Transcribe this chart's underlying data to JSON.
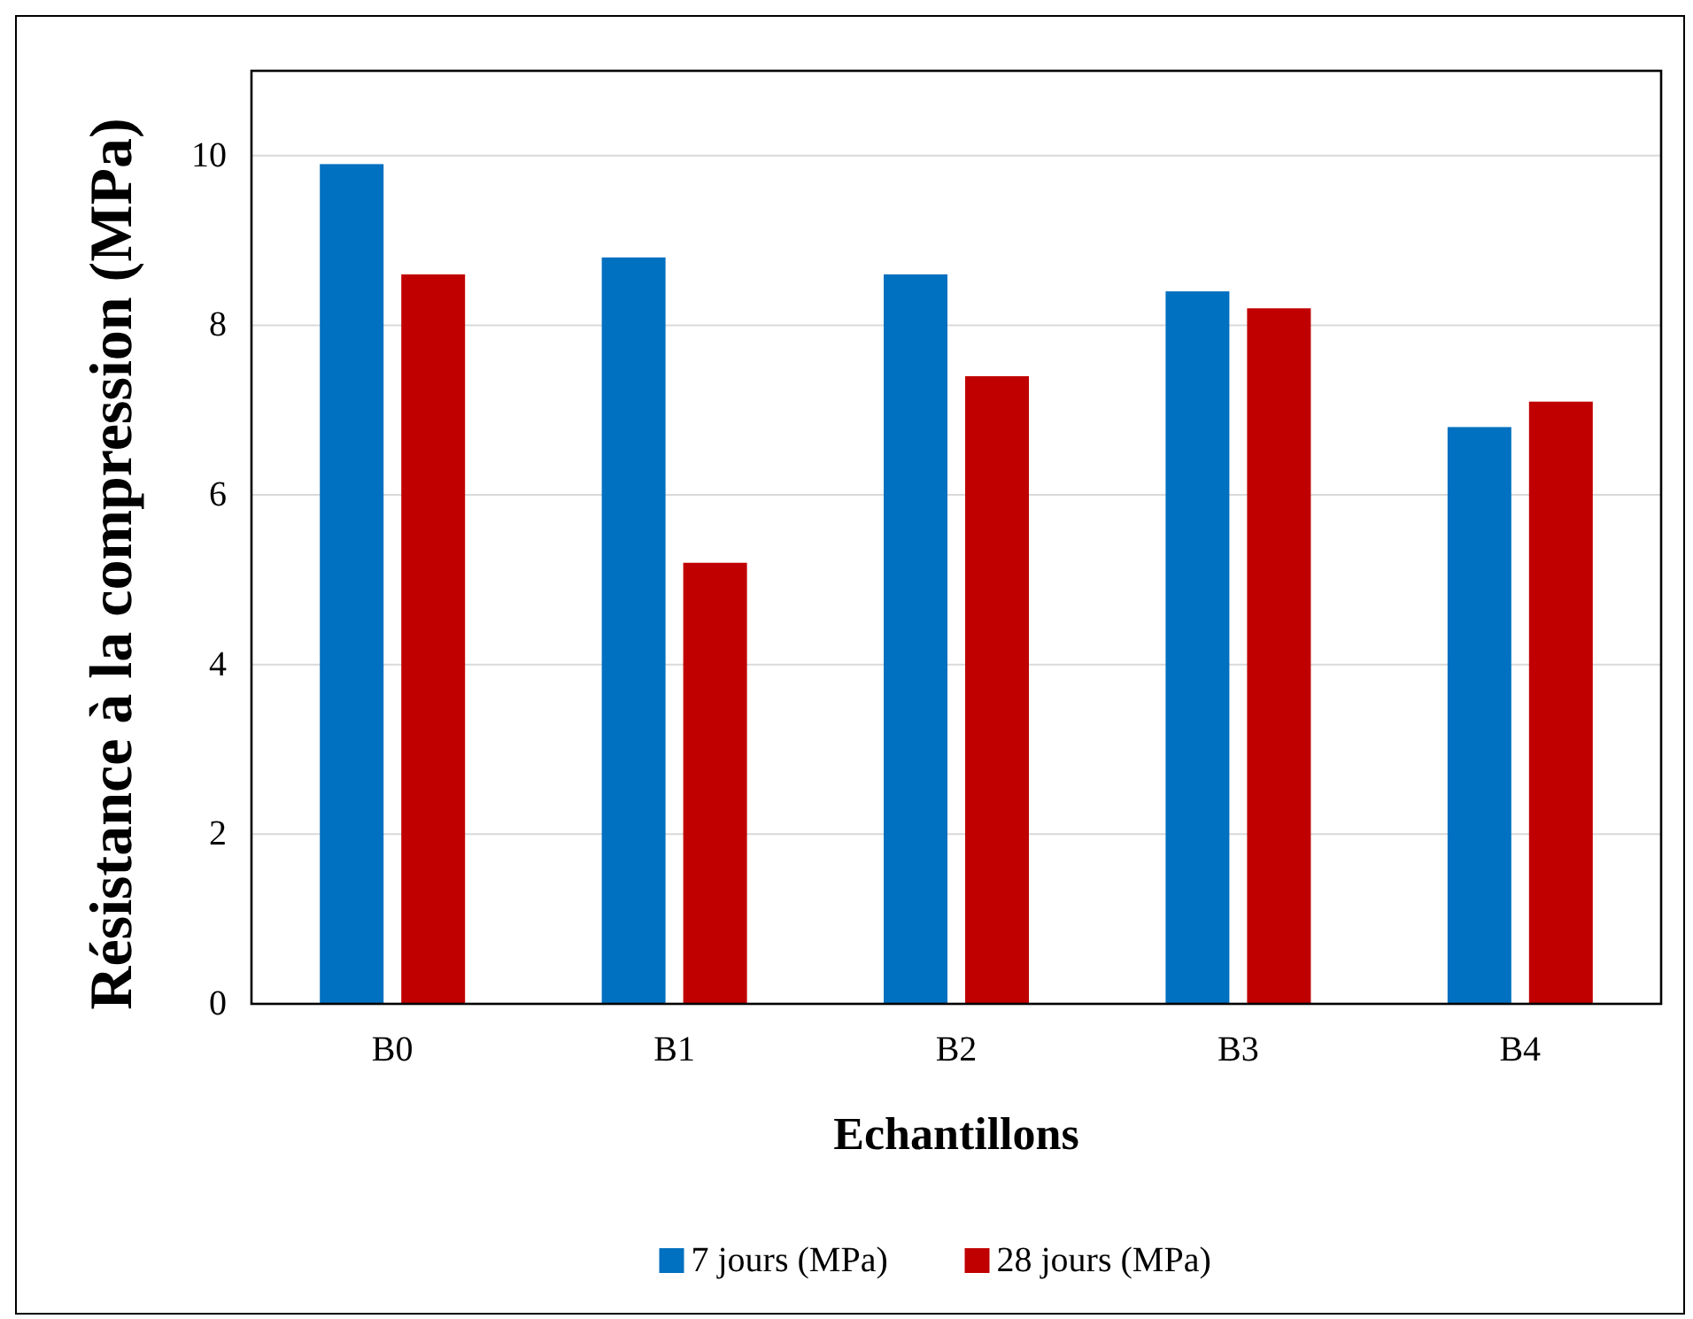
{
  "chart_data": {
    "type": "bar",
    "xlabel": "Echantillons",
    "ylabel": "Résistance à la compression (MPa)",
    "categories": [
      "B0",
      "B1",
      "B2",
      "B3",
      "B4"
    ],
    "series": [
      {
        "name": "7 jours (MPa)",
        "color": "#0070c0",
        "values": [
          9.9,
          8.8,
          8.6,
          8.4,
          6.8
        ]
      },
      {
        "name": "28 jours (MPa)",
        "color": "#c00000",
        "values": [
          8.6,
          5.2,
          7.4,
          8.2,
          7.1
        ]
      }
    ],
    "ylim": [
      0,
      11
    ],
    "yticks": [
      0,
      2,
      4,
      6,
      8,
      10
    ],
    "grid": "y",
    "legend": "bottom"
  }
}
